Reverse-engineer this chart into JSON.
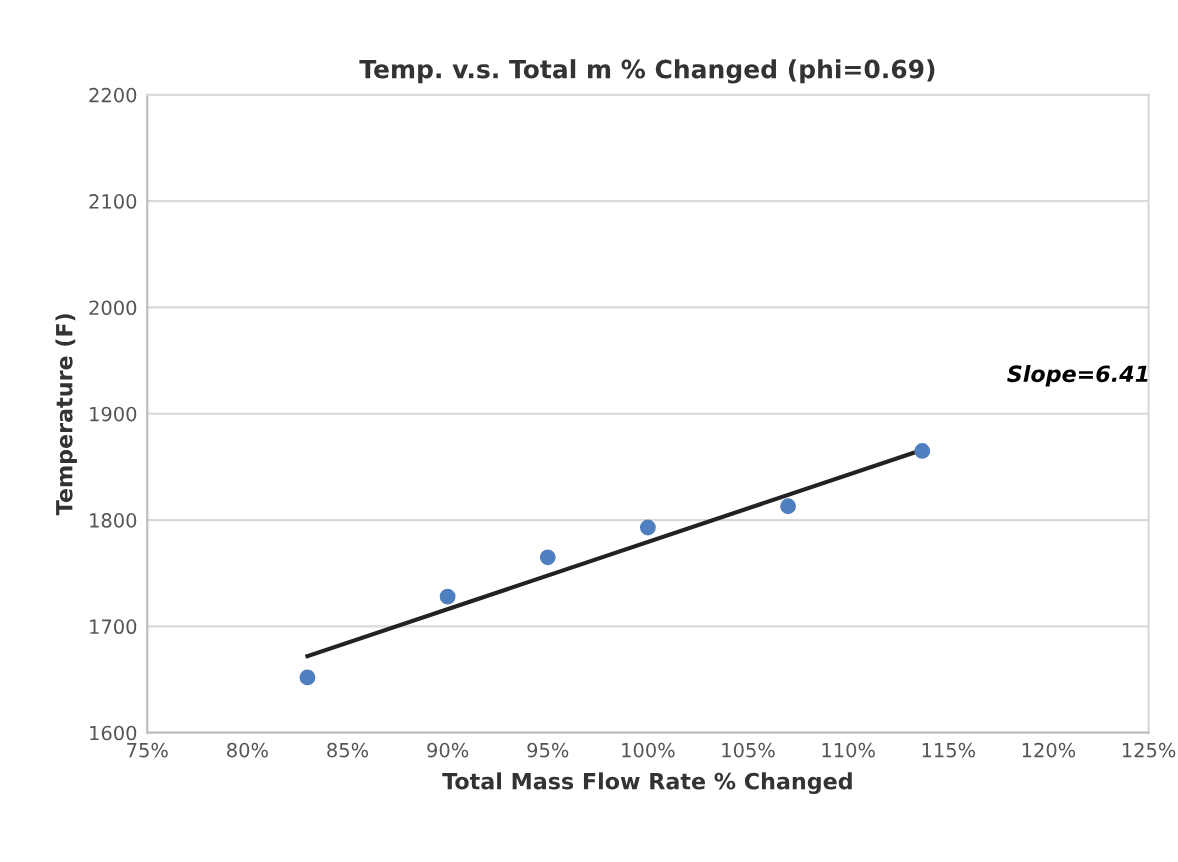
{
  "chart_data": {
    "type": "scatter",
    "title": "Temp. v.s. Total m % Changed (phi=0.69)",
    "xlabel": "Total Mass Flow Rate % Changed",
    "ylabel": "Temperature (F)",
    "series": [
      {
        "color": "#4f7fbf",
        "x": [
          83,
          90,
          95,
          100,
          107,
          113.7
        ],
        "values": [
          1652,
          1728,
          1765,
          1793,
          1813,
          1865
        ],
        "marker": "circle"
      },
      {
        "type": "line",
        "color": "#222222",
        "x": [
          83,
          113.7
        ],
        "values": [
          1672,
          1866
        ],
        "marker": "none",
        "line_style": "solid"
      }
    ],
    "annotations": [
      "Slope=6.41"
    ],
    "xlim": [
      75,
      125
    ],
    "xticks": [
      {
        "value": 75,
        "label": "75%"
      },
      {
        "value": 80,
        "label": "80%"
      },
      {
        "value": 85,
        "label": "85%"
      },
      {
        "value": 90,
        "label": "90%"
      },
      {
        "value": 95,
        "label": "95%"
      },
      {
        "value": 100,
        "label": "100%"
      },
      {
        "value": 105,
        "label": "105%"
      },
      {
        "value": 110,
        "label": "110%"
      },
      {
        "value": 115,
        "label": "115%"
      },
      {
        "value": 120,
        "label": "120%"
      },
      {
        "value": 125,
        "label": "125%"
      }
    ],
    "ylim": [
      1600,
      2200
    ],
    "yticks": [
      1600,
      1700,
      1800,
      1900,
      2000,
      2100,
      2200
    ],
    "grid": "y",
    "legend": false
  }
}
